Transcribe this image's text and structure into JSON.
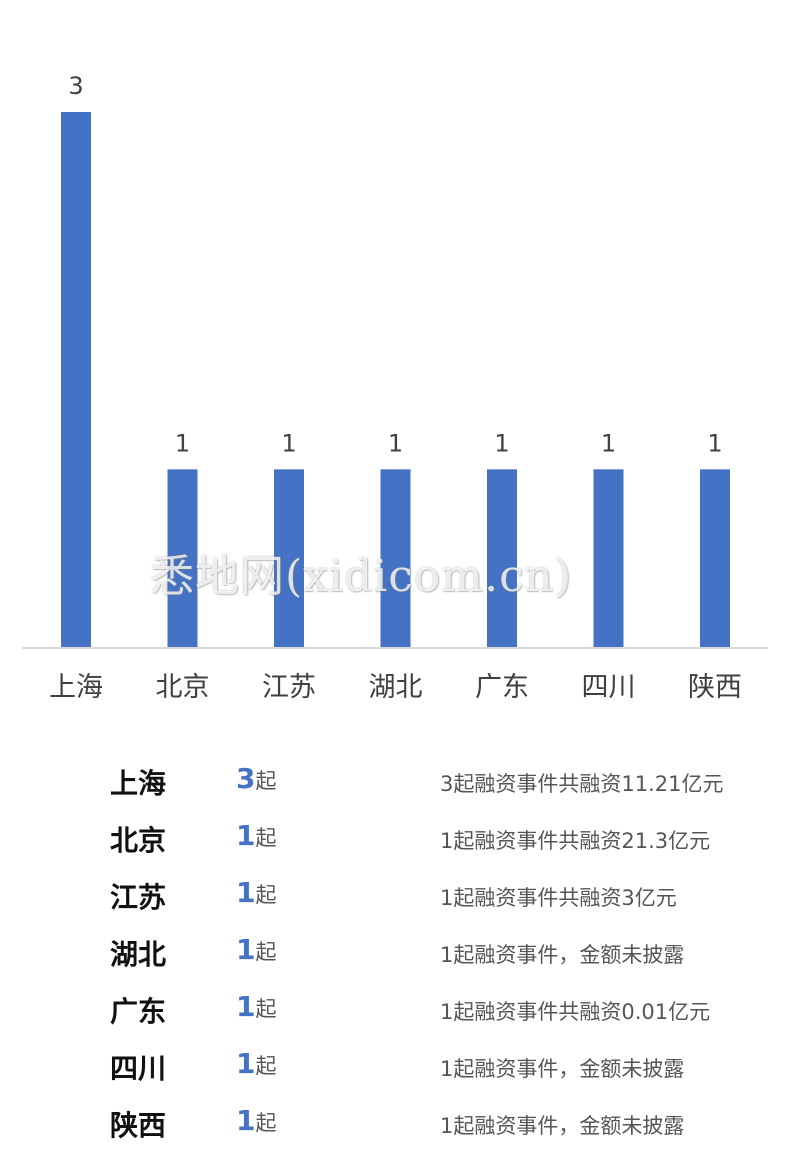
{
  "chart_data": {
    "type": "bar",
    "categories": [
      "上海",
      "北京",
      "江苏",
      "湖北",
      "广东",
      "四川",
      "陕西"
    ],
    "values": [
      3,
      1,
      1,
      1,
      1,
      1,
      1
    ],
    "ylim": [
      0,
      3
    ],
    "grid": false,
    "data_labels": true,
    "bar_color": "#4472C4"
  },
  "watermark": "悉地网(xidicom.cn)",
  "summary": {
    "unit": "起",
    "count_color": "#4472C4",
    "rows": [
      {
        "name": "上海",
        "count": "3",
        "desc": "3起融资事件共融资11.21亿元"
      },
      {
        "name": "北京",
        "count": "1",
        "desc": "1起融资事件共融资21.3亿元"
      },
      {
        "name": "江苏",
        "count": "1",
        "desc": "1起融资事件共融资3亿元"
      },
      {
        "name": "湖北",
        "count": "1",
        "desc": "1起融资事件，金额未披露"
      },
      {
        "name": "广东",
        "count": "1",
        "desc": "1起融资事件共融资0.01亿元"
      },
      {
        "name": "四川",
        "count": "1",
        "desc": "1起融资事件，金额未披露"
      },
      {
        "name": "陕西",
        "count": "1",
        "desc": "1起融资事件，金额未披露"
      }
    ]
  }
}
